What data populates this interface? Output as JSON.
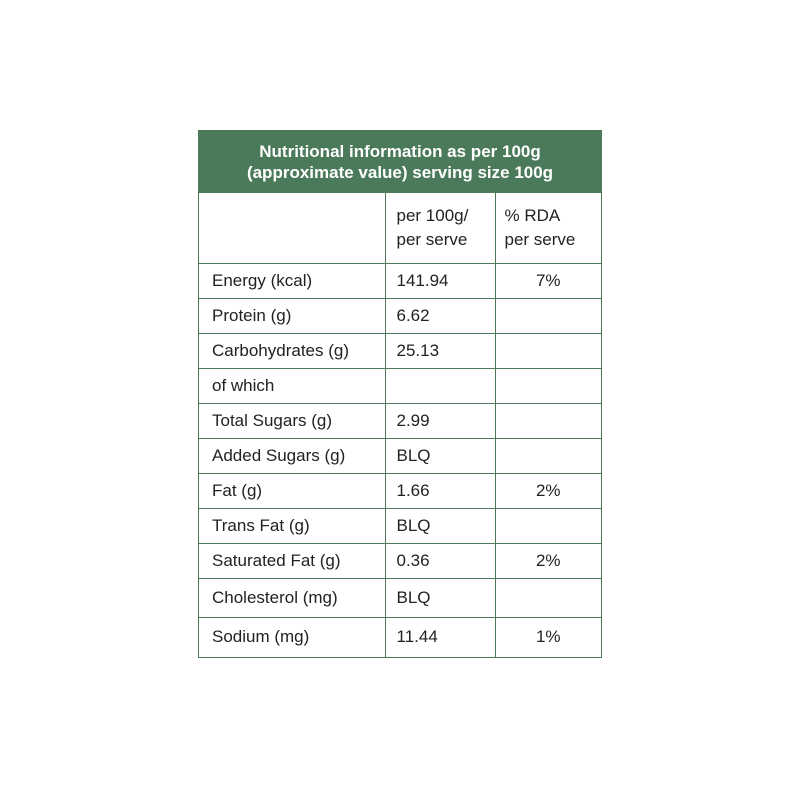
{
  "title_line1": "Nutritional information as per 100g",
  "title_line2": "(approximate value) serving size 100g",
  "header": {
    "col2_line1": "per 100g/",
    "col2_line2": "per serve",
    "col3_line1": "% RDA",
    "col3_line2": "per serve"
  },
  "rows": [
    {
      "label": "Energy (kcal)",
      "value": "141.94",
      "rda": "7%"
    },
    {
      "label": "Protein (g)",
      "value": "6.62",
      "rda": ""
    },
    {
      "label": "Carbohydrates (g)",
      "value": "25.13",
      "rda": ""
    },
    {
      "label": "of which",
      "value": "",
      "rda": ""
    },
    {
      "label": "Total Sugars (g)",
      "value": "2.99",
      "rda": ""
    },
    {
      "label": "Added Sugars (g)",
      "value": "BLQ",
      "rda": ""
    },
    {
      "label": "Fat (g)",
      "value": "1.66",
      "rda": "2%"
    },
    {
      "label": "Trans Fat (g)",
      "value": "BLQ",
      "rda": ""
    },
    {
      "label": "Saturated Fat (g)",
      "value": "0.36",
      "rda": "2%"
    },
    {
      "label": "Cholesterol (mg)",
      "value": "BLQ",
      "rda": ""
    },
    {
      "label": "Sodium (mg)",
      "value": "11.44",
      "rda": "1%"
    }
  ],
  "colors": {
    "header_green": "#4b7a5b"
  }
}
